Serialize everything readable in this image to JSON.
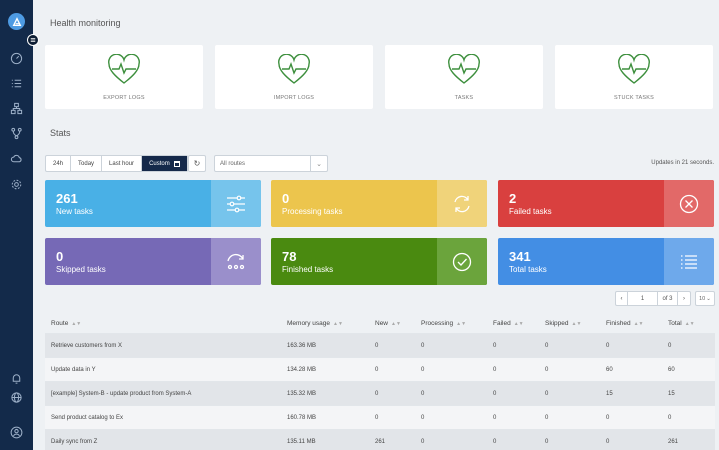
{
  "sidebar": {
    "items": [
      "speedometer-icon",
      "list-icon",
      "hierarchy-icon",
      "flow-icon",
      "cloud-icon",
      "gear-icon"
    ],
    "bottom": [
      "bell-icon",
      "globe-icon",
      "user-icon"
    ]
  },
  "health": {
    "title": "Health monitoring",
    "cards": [
      {
        "label": "EXPORT LOGS",
        "color": "#3d8f3d"
      },
      {
        "label": "IMPORT LOGS",
        "color": "#3d8f3d"
      },
      {
        "label": "TASKS",
        "color": "#3d8f3d"
      },
      {
        "label": "STUCK TASKS",
        "color": "#3d8f3d"
      }
    ]
  },
  "stats": {
    "title": "Stats",
    "ranges": [
      "24h",
      "Today",
      "Last hour",
      "Custom"
    ],
    "active_range": "Custom",
    "routes_placeholder": "All routes",
    "updates_text": "Updates in 21 seconds.",
    "tiles": [
      {
        "value": "261",
        "label": "New tasks",
        "color": "#49b0e6",
        "icon": "sliders-icon"
      },
      {
        "value": "0",
        "label": "Processing tasks",
        "color": "#ecc54d",
        "icon": "sync-icon"
      },
      {
        "value": "2",
        "label": "Failed tasks",
        "color": "#d9403f",
        "icon": "close-circle-icon"
      },
      {
        "value": "0",
        "label": "Skipped tasks",
        "color": "#7669b6",
        "icon": "skip-icon"
      },
      {
        "value": "78",
        "label": "Finished tasks",
        "color": "#4a8a10",
        "icon": "check-circle-icon"
      },
      {
        "value": "341",
        "label": "Total tasks",
        "color": "#438ee4",
        "icon": "list-icon"
      }
    ]
  },
  "pagination": {
    "prev": "‹",
    "page": "1",
    "of": "of 3",
    "next": "›",
    "per_page": "10"
  },
  "table": {
    "headers": [
      "Route",
      "Memory usage",
      "New",
      "Processing",
      "Failed",
      "Skipped",
      "Finished",
      "Total"
    ],
    "rows": [
      [
        "Retrieve customers from X",
        "163.36 MB",
        "0",
        "0",
        "0",
        "0",
        "0",
        "0"
      ],
      [
        "Update data in Y",
        "134.28 MB",
        "0",
        "0",
        "0",
        "0",
        "60",
        "60"
      ],
      [
        "[example] System-B - update product from System-A",
        "135.32 MB",
        "0",
        "0",
        "0",
        "0",
        "15",
        "15"
      ],
      [
        "Send product catalog to Ex",
        "160.78 MB",
        "0",
        "0",
        "0",
        "0",
        "0",
        "0"
      ],
      [
        "Daily sync from Z",
        "135.11 MB",
        "261",
        "0",
        "0",
        "0",
        "0",
        "261"
      ]
    ]
  }
}
